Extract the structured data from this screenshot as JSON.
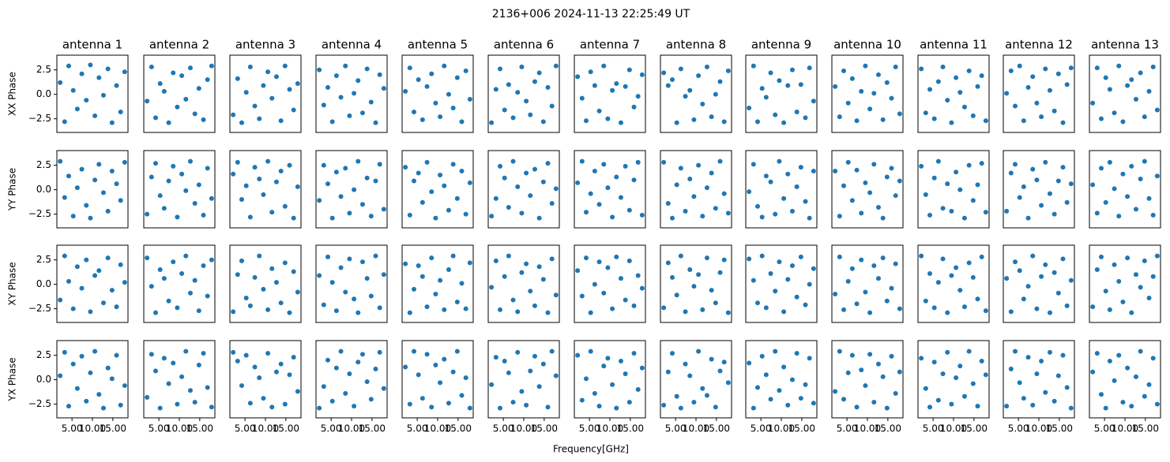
{
  "chart_data": {
    "type": "scatter",
    "title": "2136+006 2024-11-13 22:25:49 UT",
    "xlabel": "Frequency[GHz]",
    "color": "#1f77b4",
    "columns": [
      "antenna 1",
      "antenna 2",
      "antenna 3",
      "antenna 4",
      "antenna 5",
      "antenna 6",
      "antenna 7",
      "antenna 8",
      "antenna 9",
      "antenna 10",
      "antenna 11",
      "antenna 12",
      "antenna 13"
    ],
    "xlim": [
      1.3,
      18.7
    ],
    "ylim": [
      -3.9,
      4.0
    ],
    "xticks": [
      {
        "value": 5,
        "label": "5.00"
      },
      {
        "value": 10,
        "label": "10.00"
      },
      {
        "value": 15,
        "label": "15.00"
      }
    ],
    "yticks": [
      {
        "value": -2.5,
        "label": "−2.5"
      },
      {
        "value": 0,
        "label": "0.0"
      },
      2.5
    ],
    "x": [
      2.1,
      3.2,
      4.2,
      5.3,
      6.3,
      7.4,
      8.5,
      9.5,
      10.6,
      11.6,
      12.7,
      13.8,
      14.8,
      15.9,
      16.9,
      17.9
    ],
    "rows": [
      {
        "ylabel": "XX Phase",
        "panels": [
          [
            1.2,
            -2.8,
            2.9,
            0.4,
            -1.5,
            2.1,
            -0.6,
            3.0,
            -2.2,
            1.7,
            -0.1,
            2.6,
            -2.9,
            0.9,
            -1.8,
            2.3
          ],
          [
            -0.7,
            2.8,
            -2.4,
            1.1,
            0.3,
            -2.9,
            2.2,
            -1.3,
            1.9,
            -0.5,
            2.7,
            -2.0,
            0.6,
            -2.6,
            1.5,
            2.9
          ],
          [
            -2.1,
            1.6,
            -2.9,
            0.2,
            2.8,
            -1.2,
            -2.5,
            0.9,
            2.3,
            -0.4,
            1.8,
            -2.7,
            2.9,
            0.5,
            -1.6,
            1.1
          ],
          [
            2.5,
            -1.1,
            0.7,
            -2.8,
            1.9,
            -0.3,
            2.9,
            -2.2,
            0.1,
            1.4,
            -1.9,
            2.6,
            -0.8,
            -2.9,
            2.0,
            0.6
          ],
          [
            0.3,
            2.7,
            -1.8,
            1.5,
            -2.6,
            0.8,
            2.1,
            -0.9,
            -2.3,
            2.9,
            0.0,
            -1.4,
            1.7,
            -2.8,
            2.4,
            -0.5
          ],
          [
            -2.9,
            0.5,
            2.6,
            -1.6,
            1.0,
            -2.4,
            0.2,
            2.8,
            -0.7,
            -2.1,
            1.3,
            2.2,
            -2.8,
            0.7,
            -1.2,
            2.9
          ],
          [
            1.8,
            -0.4,
            -2.7,
            2.3,
            0.9,
            -1.7,
            2.9,
            -2.5,
            0.4,
            1.1,
            -2.9,
            0.8,
            2.5,
            -1.3,
            -0.2,
            2.0
          ],
          [
            2.2,
            0.9,
            1.5,
            -2.9,
            2.6,
            -0.2,
            0.4,
            -2.6,
            1.9,
            -1.0,
            2.8,
            -2.3,
            0.0,
            1.3,
            -2.8,
            2.4
          ],
          [
            -1.4,
            2.9,
            -2.8,
            0.6,
            -0.3,
            2.2,
            -2.1,
            1.4,
            -2.9,
            0.9,
            2.5,
            -1.8,
            1.0,
            -2.4,
            2.7,
            -0.7
          ],
          [
            0.8,
            -2.3,
            2.4,
            -0.9,
            1.6,
            -2.7,
            0.3,
            2.9,
            -1.5,
            0.1,
            2.0,
            -2.6,
            1.2,
            -0.4,
            2.8,
            -2.0
          ],
          [
            2.6,
            -1.9,
            0.5,
            -2.5,
            1.3,
            2.8,
            -0.6,
            -2.9,
            1.7,
            0.2,
            -1.3,
            2.4,
            -2.2,
            0.8,
            1.9,
            -2.7
          ],
          [
            0.1,
            2.4,
            -1.2,
            2.9,
            -2.7,
            0.7,
            1.8,
            -0.9,
            -2.3,
            2.6,
            0.4,
            -1.7,
            2.1,
            -2.9,
            1.0,
            2.7
          ],
          [
            -0.9,
            2.7,
            -2.5,
            1.7,
            0.5,
            -1.9,
            2.9,
            -2.8,
            0.9,
            1.5,
            -0.5,
            2.2,
            -2.3,
            0.3,
            2.8,
            -1.6
          ]
        ]
      },
      {
        "ylabel": "YY Phase",
        "panels": [
          [
            2.9,
            -0.8,
            1.4,
            -2.7,
            0.2,
            2.1,
            -1.6,
            -2.9,
            1.0,
            2.6,
            -0.3,
            -2.2,
            1.9,
            0.6,
            -1.1,
            2.8
          ],
          [
            -2.5,
            1.3,
            2.7,
            -0.6,
            -1.9,
            0.9,
            2.4,
            -2.8,
            1.6,
            -0.1,
            2.9,
            -1.4,
            0.5,
            -2.6,
            2.2,
            -0.9
          ],
          [
            1.6,
            2.8,
            -1.0,
            0.4,
            -2.8,
            2.3,
            1.1,
            -0.5,
            2.9,
            -2.3,
            0.8,
            1.9,
            -1.7,
            2.5,
            -2.9,
            0.3
          ],
          [
            -1.1,
            2.5,
            0.6,
            -2.9,
            1.8,
            -0.7,
            2.2,
            -2.4,
            0.0,
            2.9,
            -1.5,
            1.2,
            -2.7,
            0.9,
            2.6,
            -2.0
          ],
          [
            2.3,
            -2.6,
            0.9,
            1.7,
            -1.3,
            2.8,
            -0.2,
            -2.9,
            1.5,
            0.4,
            -2.1,
            2.6,
            -0.9,
            1.9,
            -2.5,
            0.7
          ],
          [
            -2.7,
            -0.9,
            2.4,
            1.2,
            -1.8,
            2.9,
            0.3,
            -2.4,
            1.7,
            -0.6,
            2.1,
            -2.9,
            0.8,
            2.7,
            -1.4,
            0.1
          ],
          [
            0.7,
            2.9,
            -2.3,
            -0.4,
            1.9,
            -1.5,
            2.6,
            0.2,
            -2.8,
            1.3,
            -0.8,
            2.4,
            -2.1,
            1.0,
            2.8,
            -2.6
          ],
          [
            2.8,
            -1.4,
            -2.9,
            0.5,
            2.2,
            -2.2,
            1.1,
            -0.7,
            2.5,
            -2.7,
            0.2,
            1.7,
            -1.9,
            2.9,
            -0.4,
            -2.4
          ],
          [
            -0.2,
            2.6,
            -1.7,
            -2.8,
            1.4,
            0.8,
            -2.5,
            2.9,
            -0.9,
            1.6,
            -2.2,
            0.3,
            2.3,
            -1.2,
            -2.9,
            1.9
          ],
          [
            1.9,
            -2.7,
            0.4,
            2.8,
            -1.1,
            2.0,
            -2.4,
            0.7,
            -0.3,
            2.6,
            -1.8,
            -2.9,
            1.3,
            2.2,
            -0.6,
            0.9
          ],
          [
            2.4,
            -0.5,
            -2.6,
            1.2,
            2.9,
            -1.9,
            0.6,
            -2.2,
            1.8,
            0.0,
            -2.9,
            2.5,
            -1.1,
            0.5,
            2.7,
            -2.3
          ],
          [
            -2.2,
            1.7,
            2.6,
            -0.8,
            0.3,
            -2.9,
            2.1,
            1.0,
            -1.6,
            2.8,
            -0.4,
            -2.5,
            0.9,
            2.3,
            -1.3,
            0.6
          ],
          [
            0.5,
            -2.4,
            2.2,
            -1.3,
            2.8,
            0.1,
            -2.7,
            1.6,
            -0.7,
            2.4,
            -2.0,
            1.1,
            2.9,
            -0.9,
            -2.6,
            1.4
          ]
        ]
      },
      {
        "ylabel": "XY Phase",
        "panels": [
          [
            -1.6,
            2.9,
            0.3,
            -2.5,
            1.8,
            -0.4,
            2.5,
            -2.8,
            0.9,
            1.4,
            -1.9,
            2.7,
            -0.6,
            -2.3,
            2.0,
            0.2
          ],
          [
            2.7,
            -0.2,
            -2.9,
            1.5,
            0.6,
            -1.7,
            2.3,
            -2.4,
            1.1,
            2.9,
            -0.9,
            0.4,
            -2.7,
            1.9,
            -1.2,
            2.5
          ],
          [
            -2.8,
            1.0,
            2.4,
            -1.4,
            -2.2,
            0.7,
            2.9,
            -0.5,
            -2.6,
            1.6,
            0.2,
            -1.9,
            2.2,
            -2.9,
            1.3,
            -0.8
          ],
          [
            0.9,
            -2.1,
            2.8,
            0.2,
            -2.7,
            1.7,
            -0.8,
            2.6,
            -1.5,
            -2.9,
            2.3,
            0.6,
            -1.2,
            2.9,
            -2.4,
            1.0
          ],
          [
            2.1,
            -2.9,
            -0.5,
            1.9,
            0.8,
            -2.3,
            2.7,
            -1.0,
            0.4,
            -2.6,
            1.5,
            2.9,
            -1.8,
            0.1,
            -2.5,
            2.2
          ],
          [
            -0.3,
            2.4,
            -2.6,
            0.8,
            2.9,
            -1.6,
            -2.8,
            1.2,
            2.1,
            -0.7,
            -2.2,
            1.8,
            0.5,
            -2.9,
            2.6,
            -1.1
          ],
          [
            1.4,
            -1.2,
            2.7,
            -2.9,
            0.0,
            2.3,
            -0.9,
            1.7,
            -2.5,
            2.8,
            0.6,
            -1.6,
            2.4,
            -2.2,
            0.9,
            -0.4
          ],
          [
            -2.4,
            2.2,
            0.7,
            -1.1,
            2.9,
            -2.8,
            1.5,
            -0.2,
            1.0,
            -2.6,
            2.7,
            -0.6,
            -1.9,
            1.2,
            2.5,
            -2.9
          ],
          [
            2.6,
            0.4,
            -1.9,
            2.9,
            -2.4,
            1.1,
            -0.7,
            2.3,
            -2.8,
            0.5,
            1.9,
            -1.3,
            2.8,
            -2.1,
            0.0,
            1.6
          ],
          [
            -1.0,
            2.8,
            -2.6,
            0.3,
            1.6,
            -2.0,
            2.5,
            -0.8,
            -2.9,
            1.9,
            0.6,
            2.7,
            -1.7,
            -0.4,
            2.1,
            -2.5
          ],
          [
            2.9,
            -1.7,
            1.1,
            -2.4,
            0.2,
            2.6,
            -2.9,
            0.9,
            1.7,
            -0.6,
            -2.3,
            2.2,
            0.7,
            -1.5,
            2.8,
            -2.7
          ],
          [
            0.6,
            -2.8,
            2.3,
            1.4,
            -1.5,
            -0.2,
            2.9,
            -2.5,
            0.8,
            2.0,
            -2.9,
            1.2,
            -0.9,
            2.6,
            -2.2,
            0.4
          ],
          [
            -2.3,
            1.5,
            2.8,
            -0.7,
            -2.6,
            2.0,
            0.3,
            -1.8,
            2.7,
            -2.9,
            1.0,
            -0.3,
            2.4,
            -1.4,
            0.8,
            2.9
          ]
        ]
      },
      {
        "ylabel": "YX Phase",
        "panels": [
          [
            0.4,
            2.8,
            -2.7,
            1.6,
            -0.9,
            2.4,
            -2.2,
            0.7,
            2.9,
            -1.5,
            -2.9,
            1.2,
            0.1,
            2.5,
            -2.6,
            -0.6
          ],
          [
            -1.8,
            2.6,
            0.9,
            -2.9,
            2.2,
            -0.4,
            1.7,
            -2.5,
            0.3,
            2.9,
            -1.1,
            -2.3,
            1.5,
            2.7,
            -0.8,
            -2.8
          ],
          [
            2.8,
            1.9,
            -0.6,
            2.5,
            -2.4,
            1.3,
            0.2,
            -1.9,
            2.7,
            -2.8,
            0.8,
            1.6,
            -2.5,
            0.5,
            2.3,
            -1.2
          ],
          [
            -2.9,
            -0.7,
            2.0,
            -2.2,
            1.2,
            2.9,
            -1.4,
            0.6,
            -2.7,
            1.8,
            2.6,
            -0.2,
            -2.0,
            1.1,
            2.8,
            -0.9
          ],
          [
            1.3,
            -2.5,
            2.9,
            0.5,
            -1.9,
            2.6,
            -2.8,
            1.5,
            -0.3,
            2.1,
            -2.4,
            0.8,
            2.9,
            -1.6,
            0.2,
            -2.9
          ],
          [
            -0.5,
            2.3,
            -2.9,
            1.9,
            0.7,
            -2.3,
            2.8,
            -1.2,
            -2.6,
            0.9,
            2.4,
            -0.7,
            1.6,
            -2.8,
            2.9,
            0.4
          ],
          [
            2.5,
            -2.1,
            0.1,
            2.9,
            -1.4,
            -2.7,
            1.4,
            2.2,
            -0.5,
            -2.9,
            1.9,
            0.6,
            -2.3,
            2.7,
            -1.0,
            1.2
          ],
          [
            -2.6,
            0.8,
            2.7,
            -1.7,
            -2.9,
            1.6,
            0.4,
            -2.3,
            2.9,
            -0.9,
            -1.6,
            2.1,
            -2.8,
            0.9,
            1.8,
            -0.3
          ],
          [
            1.7,
            -2.9,
            -0.8,
            2.4,
            0.5,
            -2.0,
            2.9,
            -1.1,
            1.3,
            -2.6,
            0.0,
            2.7,
            -1.9,
            -0.5,
            2.2,
            -2.4
          ],
          [
            -1.2,
            2.9,
            -2.0,
            0.7,
            2.5,
            -2.8,
            1.0,
            -0.6,
            2.6,
            -2.3,
            1.6,
            0.3,
            -2.9,
            2.4,
            -1.4,
            0.8
          ],
          [
            2.2,
            -0.9,
            -2.8,
            1.8,
            -2.1,
            0.6,
            2.8,
            -2.5,
            0.2,
            1.4,
            -1.7,
            2.9,
            -0.4,
            -2.7,
            1.9,
            0.5
          ],
          [
            -2.7,
            1.1,
            2.9,
            -0.3,
            -1.9,
            2.3,
            -2.6,
            0.6,
            1.9,
            -1.3,
            2.8,
            -2.2,
            0.4,
            2.5,
            -0.8,
            -2.9
          ],
          [
            0.8,
            2.7,
            -1.5,
            -2.9,
            1.9,
            -0.1,
            2.5,
            -2.3,
            1.2,
            -2.7,
            0.3,
            2.9,
            -1.7,
            -0.5,
            2.2,
            -2.5
          ]
        ]
      }
    ]
  }
}
